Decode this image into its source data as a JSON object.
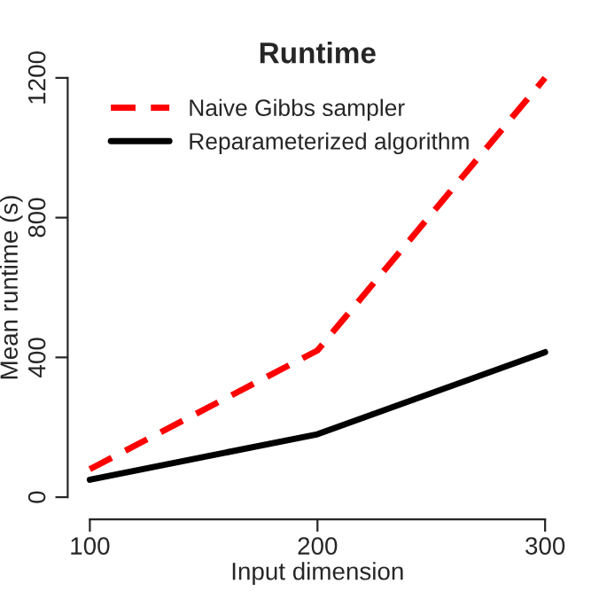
{
  "chart_data": {
    "type": "line",
    "title": "Runtime",
    "xlabel": "Input dimension",
    "ylabel": "Mean runtime (s)",
    "x": [
      100,
      200,
      300
    ],
    "series": [
      {
        "name": "Naive Gibbs sampler",
        "color": "#ff0000",
        "values": [
          80,
          420,
          1200
        ],
        "line_style": "dashed"
      },
      {
        "name": "Reparameterized algorithm",
        "color": "#000000",
        "values": [
          50,
          180,
          415
        ],
        "line_style": "solid"
      }
    ],
    "xlim": [
      100,
      300
    ],
    "ylim": [
      0,
      1200
    ],
    "xticks": [
      100,
      200,
      300
    ],
    "yticks": [
      0,
      400,
      800,
      1200
    ],
    "grid": false,
    "legend": "top left",
    "marker": "none"
  }
}
